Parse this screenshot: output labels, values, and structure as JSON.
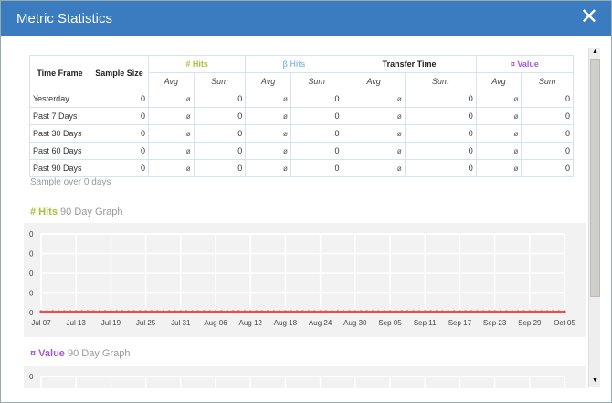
{
  "title": "Metric Statistics",
  "close_icon": "close-x-icon",
  "colors": {
    "hits": "#a6c43a",
    "beta": "#8fc2e3",
    "value": "#a35ad1",
    "line": "#f04b4b",
    "titlebar": "#3b7bbf"
  },
  "table": {
    "h_time": "Time Frame",
    "h_sample": "Sample Size",
    "groups": [
      "# Hits",
      "β Hits",
      "Transfer Time",
      "¤ Value"
    ],
    "sub": [
      "Avg",
      "Sum"
    ],
    "rows": [
      {
        "label": "Yesterday",
        "sample": "0",
        "cells": [
          "ø",
          "0",
          "ø",
          "0",
          "ø",
          "0",
          "ø",
          "0"
        ]
      },
      {
        "label": "Past 7 Days",
        "sample": "0",
        "cells": [
          "ø",
          "0",
          "ø",
          "0",
          "ø",
          "0",
          "ø",
          "0"
        ]
      },
      {
        "label": "Past 30 Days",
        "sample": "0",
        "cells": [
          "ø",
          "0",
          "ø",
          "0",
          "ø",
          "0",
          "ø",
          "0"
        ]
      },
      {
        "label": "Past 60 Days",
        "sample": "0",
        "cells": [
          "ø",
          "0",
          "ø",
          "0",
          "ø",
          "0",
          "ø",
          "0"
        ]
      },
      {
        "label": "Past 90 Days",
        "sample": "0",
        "cells": [
          "ø",
          "0",
          "ø",
          "0",
          "ø",
          "0",
          "ø",
          "0"
        ]
      }
    ]
  },
  "sample_note": "Sample over 0 days",
  "graph1": {
    "metric": "# Hits",
    "suffix": "90 Day Graph"
  },
  "graph2": {
    "metric": "¤ Value",
    "suffix": "90 Day Graph"
  },
  "chart_data": [
    {
      "type": "line",
      "title": "# Hits 90 Day Graph",
      "x_start": "Jul 07",
      "x_end": "Oct 05",
      "days": 91,
      "value_all": 0,
      "y_ticks": [
        "0",
        "0",
        "0",
        "0",
        "0"
      ],
      "x_ticks": [
        "Jul 07",
        "Jul 13",
        "Jul 19",
        "Jul 25",
        "Jul 31",
        "Aug 06",
        "Aug 12",
        "Aug 18",
        "Aug 24",
        "Aug 30",
        "Sep 05",
        "Sep 11",
        "Sep 17",
        "Sep 23",
        "Sep 29",
        "Oct 05"
      ],
      "grid": true
    },
    {
      "type": "line",
      "title": "¤ Value 90 Day Graph",
      "y_ticks": [
        "0"
      ],
      "grid": true
    }
  ]
}
